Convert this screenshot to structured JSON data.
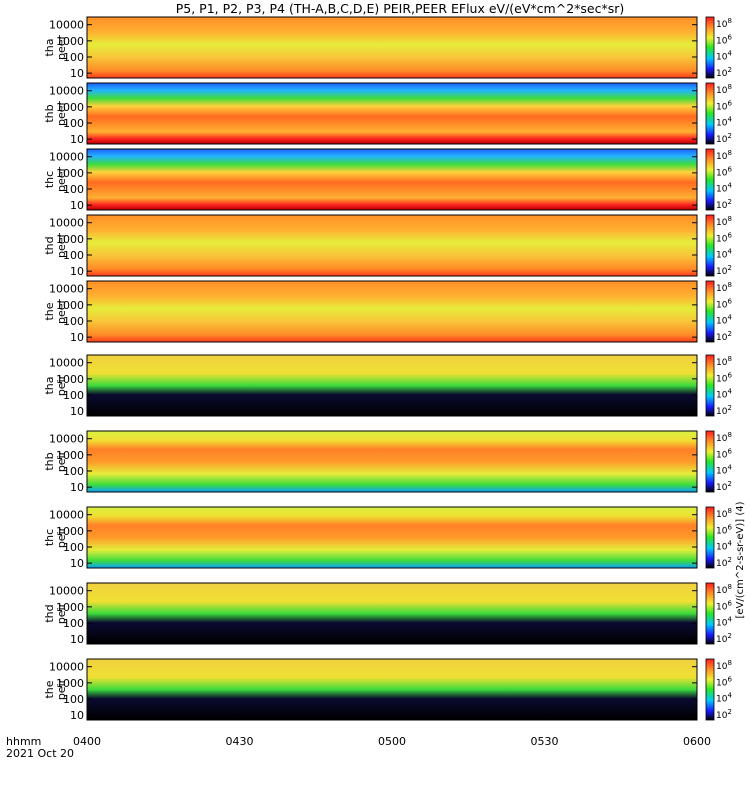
{
  "chart_data": {
    "type": "heatmap",
    "title": "P5, P1, P2, P3, P4 (TH-A,B,C,D,E) PEIR,PEER EFlux eV/(eV*cm^2*sec*sr)",
    "x_axis": {
      "label_line1": "hhmm",
      "label_line2": "2021 Oct 20",
      "range": [
        "04:00",
        "06:00"
      ],
      "ticks": [
        "0400",
        "0430",
        "0500",
        "0530",
        "0600"
      ]
    },
    "colorbar_label": "[eV/(cm^2-s-sr-eV)] (4)",
    "panels": [
      {
        "probe": "tha",
        "species": "peer",
        "yticks": [
          "10",
          "100",
          "1000",
          "10000"
        ],
        "ylog": true,
        "ylim": [
          5,
          30000
        ],
        "zticks": [
          "10^8",
          "10^6",
          "10^4",
          "10^2"
        ]
      },
      {
        "probe": "thb",
        "species": "peer",
        "yticks": [
          "10",
          "100",
          "1000",
          "10000"
        ],
        "ylog": true,
        "ylim": [
          5,
          30000
        ],
        "zticks": [
          "10^8",
          "10^6",
          "10^4",
          "10^2"
        ]
      },
      {
        "probe": "thc",
        "species": "peer",
        "yticks": [
          "10",
          "100",
          "1000",
          "10000"
        ],
        "ylog": true,
        "ylim": [
          5,
          30000
        ],
        "zticks": [
          "10^8",
          "10^6",
          "10^4",
          "10^2"
        ]
      },
      {
        "probe": "thd",
        "species": "peer",
        "yticks": [
          "10",
          "100",
          "1000",
          "10000"
        ],
        "ylog": true,
        "ylim": [
          5,
          30000
        ],
        "zticks": [
          "10^8",
          "10^6",
          "10^4",
          "10^2"
        ]
      },
      {
        "probe": "the",
        "species": "peer",
        "yticks": [
          "10",
          "100",
          "1000",
          "10000"
        ],
        "ylog": true,
        "ylim": [
          5,
          30000
        ],
        "zticks": [
          "10^8",
          "10^6",
          "10^4",
          "10^2"
        ]
      },
      {
        "probe": "tha",
        "species": "peir",
        "yticks": [
          "10",
          "100",
          "1000",
          "10000"
        ],
        "ylog": true,
        "ylim": [
          5,
          30000
        ],
        "zticks": [
          "10^8",
          "10^6",
          "10^4",
          "10^2"
        ]
      },
      {
        "probe": "thb",
        "species": "peir",
        "yticks": [
          "10",
          "100",
          "1000",
          "10000"
        ],
        "ylog": true,
        "ylim": [
          5,
          30000
        ],
        "zticks": [
          "10^8",
          "10^6",
          "10^4",
          "10^2"
        ]
      },
      {
        "probe": "thc",
        "species": "peir",
        "yticks": [
          "10",
          "100",
          "1000",
          "10000"
        ],
        "ylog": true,
        "ylim": [
          5,
          30000
        ],
        "zticks": [
          "10^8",
          "10^6",
          "10^4",
          "10^2"
        ]
      },
      {
        "probe": "thd",
        "species": "peir",
        "yticks": [
          "10",
          "100",
          "1000",
          "10000"
        ],
        "ylog": true,
        "ylim": [
          5,
          30000
        ],
        "zticks": [
          "10^8",
          "10^6",
          "10^4",
          "10^2"
        ]
      },
      {
        "probe": "the",
        "species": "peir",
        "yticks": [
          "10",
          "100",
          "1000",
          "10000"
        ],
        "ylog": true,
        "ylim": [
          5,
          30000
        ],
        "zticks": [
          "10^8",
          "10^6",
          "10^4",
          "10^2"
        ]
      }
    ],
    "colorscale": [
      "#000000",
      "#1a1aff",
      "#00c8ff",
      "#28e628",
      "#f0f032",
      "#ff9628",
      "#ff1e1e"
    ]
  }
}
